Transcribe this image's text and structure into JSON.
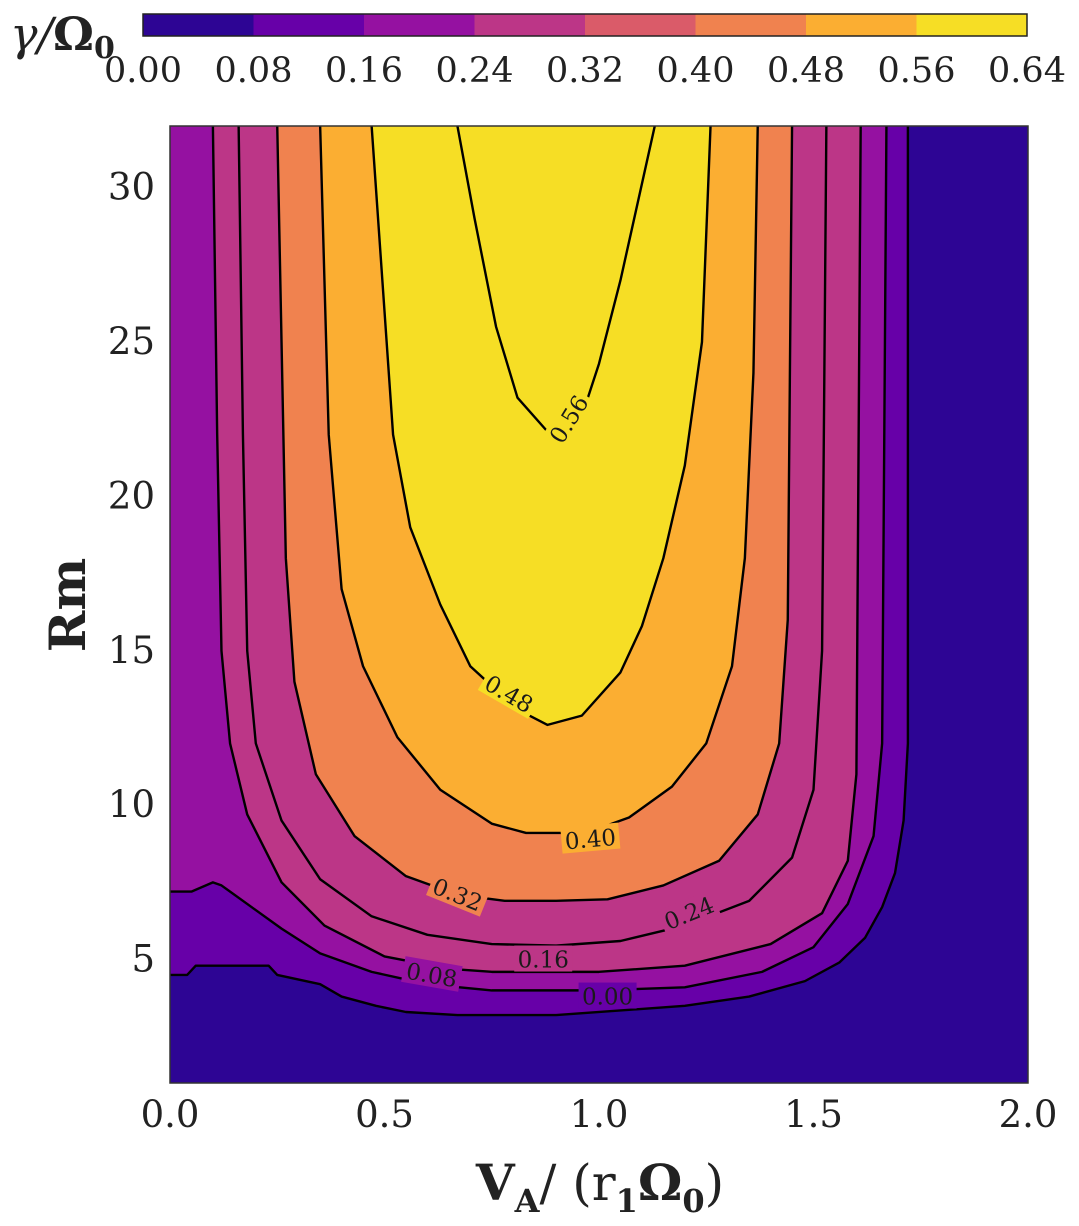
{
  "chart_data": {
    "type": "contour",
    "colormap": "plasma",
    "xlim": [
      0.0,
      2.0
    ],
    "ylim": [
      1,
      32
    ],
    "x_ticks": [
      "0.0",
      "0.5",
      "1.0",
      "1.5",
      "2.0"
    ],
    "y_ticks": [
      "5",
      "10",
      "15",
      "20",
      "25",
      "30"
    ],
    "xlabel": {
      "base": "V",
      "sub": "A",
      "rest": "/ (r",
      "sub1": "1",
      "omega": "Ω",
      "sub0": "0",
      "close": ")"
    },
    "ylabel": "Rm",
    "colorbar": {
      "label": {
        "gamma": "γ",
        "slash": "/",
        "omega": "Ω",
        "sub": "0"
      },
      "ticks": [
        "0.00",
        "0.08",
        "0.16",
        "0.24",
        "0.32",
        "0.40",
        "0.48",
        "0.56",
        "0.64"
      ],
      "colors": [
        "#2d0594",
        "#6700a8",
        "#9511a1",
        "#bc3687",
        "#da5b69",
        "#f0824f",
        "#fbae32",
        "#f6de25"
      ]
    },
    "contour_labels": [
      {
        "level": "0.56",
        "x": 0.93,
        "y": 22.5,
        "angle": -58
      },
      {
        "level": "0.48",
        "x": 0.79,
        "y": 13.6,
        "angle": 30
      },
      {
        "level": "0.40",
        "x": 0.98,
        "y": 8.9,
        "angle": -5
      },
      {
        "level": "0.32",
        "x": 0.67,
        "y": 7.1,
        "angle": 22
      },
      {
        "level": "0.24",
        "x": 1.21,
        "y": 6.5,
        "angle": -22
      },
      {
        "level": "0.16",
        "x": 0.87,
        "y": 5.0,
        "angle": 0
      },
      {
        "level": "0.08",
        "x": 0.61,
        "y": 4.5,
        "angle": 10
      },
      {
        "level": "0.00",
        "x": 1.02,
        "y": 3.8,
        "angle": 0
      }
    ],
    "contours": [
      {
        "level": 0.56,
        "points": [
          [
            0.67,
            32
          ],
          [
            0.71,
            29
          ],
          [
            0.76,
            25.5
          ],
          [
            0.81,
            23.2
          ],
          [
            0.88,
            22.1
          ],
          [
            0.96,
            22.6
          ],
          [
            1.0,
            24.3
          ],
          [
            1.05,
            27
          ],
          [
            1.13,
            32
          ]
        ]
      },
      {
        "level": 0.48,
        "points": [
          [
            0.47,
            32
          ],
          [
            0.49,
            28
          ],
          [
            0.52,
            22
          ],
          [
            0.56,
            19
          ],
          [
            0.63,
            16.5
          ],
          [
            0.7,
            14.5
          ],
          [
            0.81,
            13.1
          ],
          [
            0.88,
            12.6
          ],
          [
            0.96,
            12.9
          ],
          [
            1.05,
            14.3
          ],
          [
            1.1,
            15.8
          ],
          [
            1.15,
            18
          ],
          [
            1.2,
            21
          ],
          [
            1.24,
            25
          ],
          [
            1.26,
            32
          ]
        ]
      },
      {
        "level": 0.4,
        "points": [
          [
            0.35,
            32
          ],
          [
            0.36,
            27
          ],
          [
            0.37,
            22
          ],
          [
            0.4,
            17
          ],
          [
            0.45,
            14.5
          ],
          [
            0.53,
            12.2
          ],
          [
            0.63,
            10.5
          ],
          [
            0.75,
            9.4
          ],
          [
            0.83,
            9.1
          ],
          [
            0.97,
            9.1
          ],
          [
            1.07,
            9.6
          ],
          [
            1.17,
            10.6
          ],
          [
            1.25,
            12
          ],
          [
            1.31,
            14.5
          ],
          [
            1.34,
            18
          ],
          [
            1.36,
            24
          ],
          [
            1.37,
            32
          ]
        ]
      },
      {
        "level": 0.32,
        "points": [
          [
            0.25,
            32
          ],
          [
            0.26,
            25
          ],
          [
            0.27,
            18
          ],
          [
            0.29,
            14
          ],
          [
            0.34,
            11
          ],
          [
            0.43,
            9
          ],
          [
            0.55,
            7.7
          ],
          [
            0.67,
            7.1
          ],
          [
            0.78,
            6.9
          ],
          [
            0.9,
            6.9
          ],
          [
            1.02,
            6.95
          ],
          [
            1.15,
            7.4
          ],
          [
            1.28,
            8.2
          ],
          [
            1.37,
            9.7
          ],
          [
            1.42,
            12
          ],
          [
            1.44,
            16
          ],
          [
            1.45,
            32
          ]
        ]
      },
      {
        "level": 0.24,
        "points": [
          [
            0.16,
            32
          ],
          [
            0.17,
            22
          ],
          [
            0.18,
            15
          ],
          [
            0.2,
            12
          ],
          [
            0.26,
            9.5
          ],
          [
            0.35,
            7.6
          ],
          [
            0.47,
            6.4
          ],
          [
            0.6,
            5.8
          ],
          [
            0.75,
            5.5
          ],
          [
            0.9,
            5.45
          ],
          [
            1.05,
            5.6
          ],
          [
            1.2,
            6.1
          ],
          [
            1.35,
            6.9
          ],
          [
            1.45,
            8.3
          ],
          [
            1.5,
            10.5
          ],
          [
            1.52,
            15
          ],
          [
            1.53,
            32
          ]
        ]
      },
      {
        "level": 0.16,
        "points": [
          [
            0.1,
            32
          ],
          [
            0.11,
            22
          ],
          [
            0.12,
            15
          ],
          [
            0.14,
            12
          ],
          [
            0.18,
            9.7
          ],
          [
            0.26,
            7.5
          ],
          [
            0.36,
            6.1
          ],
          [
            0.5,
            5.1
          ],
          [
            0.65,
            4.7
          ],
          [
            0.75,
            4.6
          ],
          [
            1.0,
            4.6
          ],
          [
            1.2,
            4.8
          ],
          [
            1.4,
            5.5
          ],
          [
            1.52,
            6.5
          ],
          [
            1.58,
            8.2
          ],
          [
            1.6,
            11
          ],
          [
            1.61,
            32
          ]
        ]
      },
      {
        "level": 0.08,
        "points": [
          [
            0.0,
            7.2
          ],
          [
            0.05,
            7.2
          ],
          [
            0.1,
            7.5
          ],
          [
            0.12,
            7.4
          ],
          [
            0.18,
            6.8
          ],
          [
            0.26,
            6.0
          ],
          [
            0.35,
            5.2
          ],
          [
            0.47,
            4.6
          ],
          [
            0.6,
            4.2
          ],
          [
            0.75,
            4.0
          ],
          [
            1.0,
            4.0
          ],
          [
            1.2,
            4.1
          ],
          [
            1.38,
            4.6
          ],
          [
            1.5,
            5.4
          ],
          [
            1.58,
            6.8
          ],
          [
            1.64,
            9
          ],
          [
            1.66,
            12
          ],
          [
            1.67,
            32
          ]
        ]
      },
      {
        "level": 0.0,
        "points": [
          [
            0.0,
            4.5
          ],
          [
            0.04,
            4.5
          ],
          [
            0.06,
            4.8
          ],
          [
            0.23,
            4.8
          ],
          [
            0.25,
            4.5
          ],
          [
            0.35,
            4.2
          ],
          [
            0.4,
            3.8
          ],
          [
            0.48,
            3.5
          ],
          [
            0.55,
            3.3
          ],
          [
            0.67,
            3.2
          ],
          [
            0.9,
            3.2
          ],
          [
            1.2,
            3.5
          ],
          [
            1.35,
            3.8
          ],
          [
            1.48,
            4.3
          ],
          [
            1.56,
            4.9
          ],
          [
            1.62,
            5.7
          ],
          [
            1.66,
            6.7
          ],
          [
            1.69,
            7.8
          ],
          [
            1.71,
            9.5
          ],
          [
            1.72,
            12
          ],
          [
            1.72,
            32
          ]
        ]
      }
    ]
  }
}
